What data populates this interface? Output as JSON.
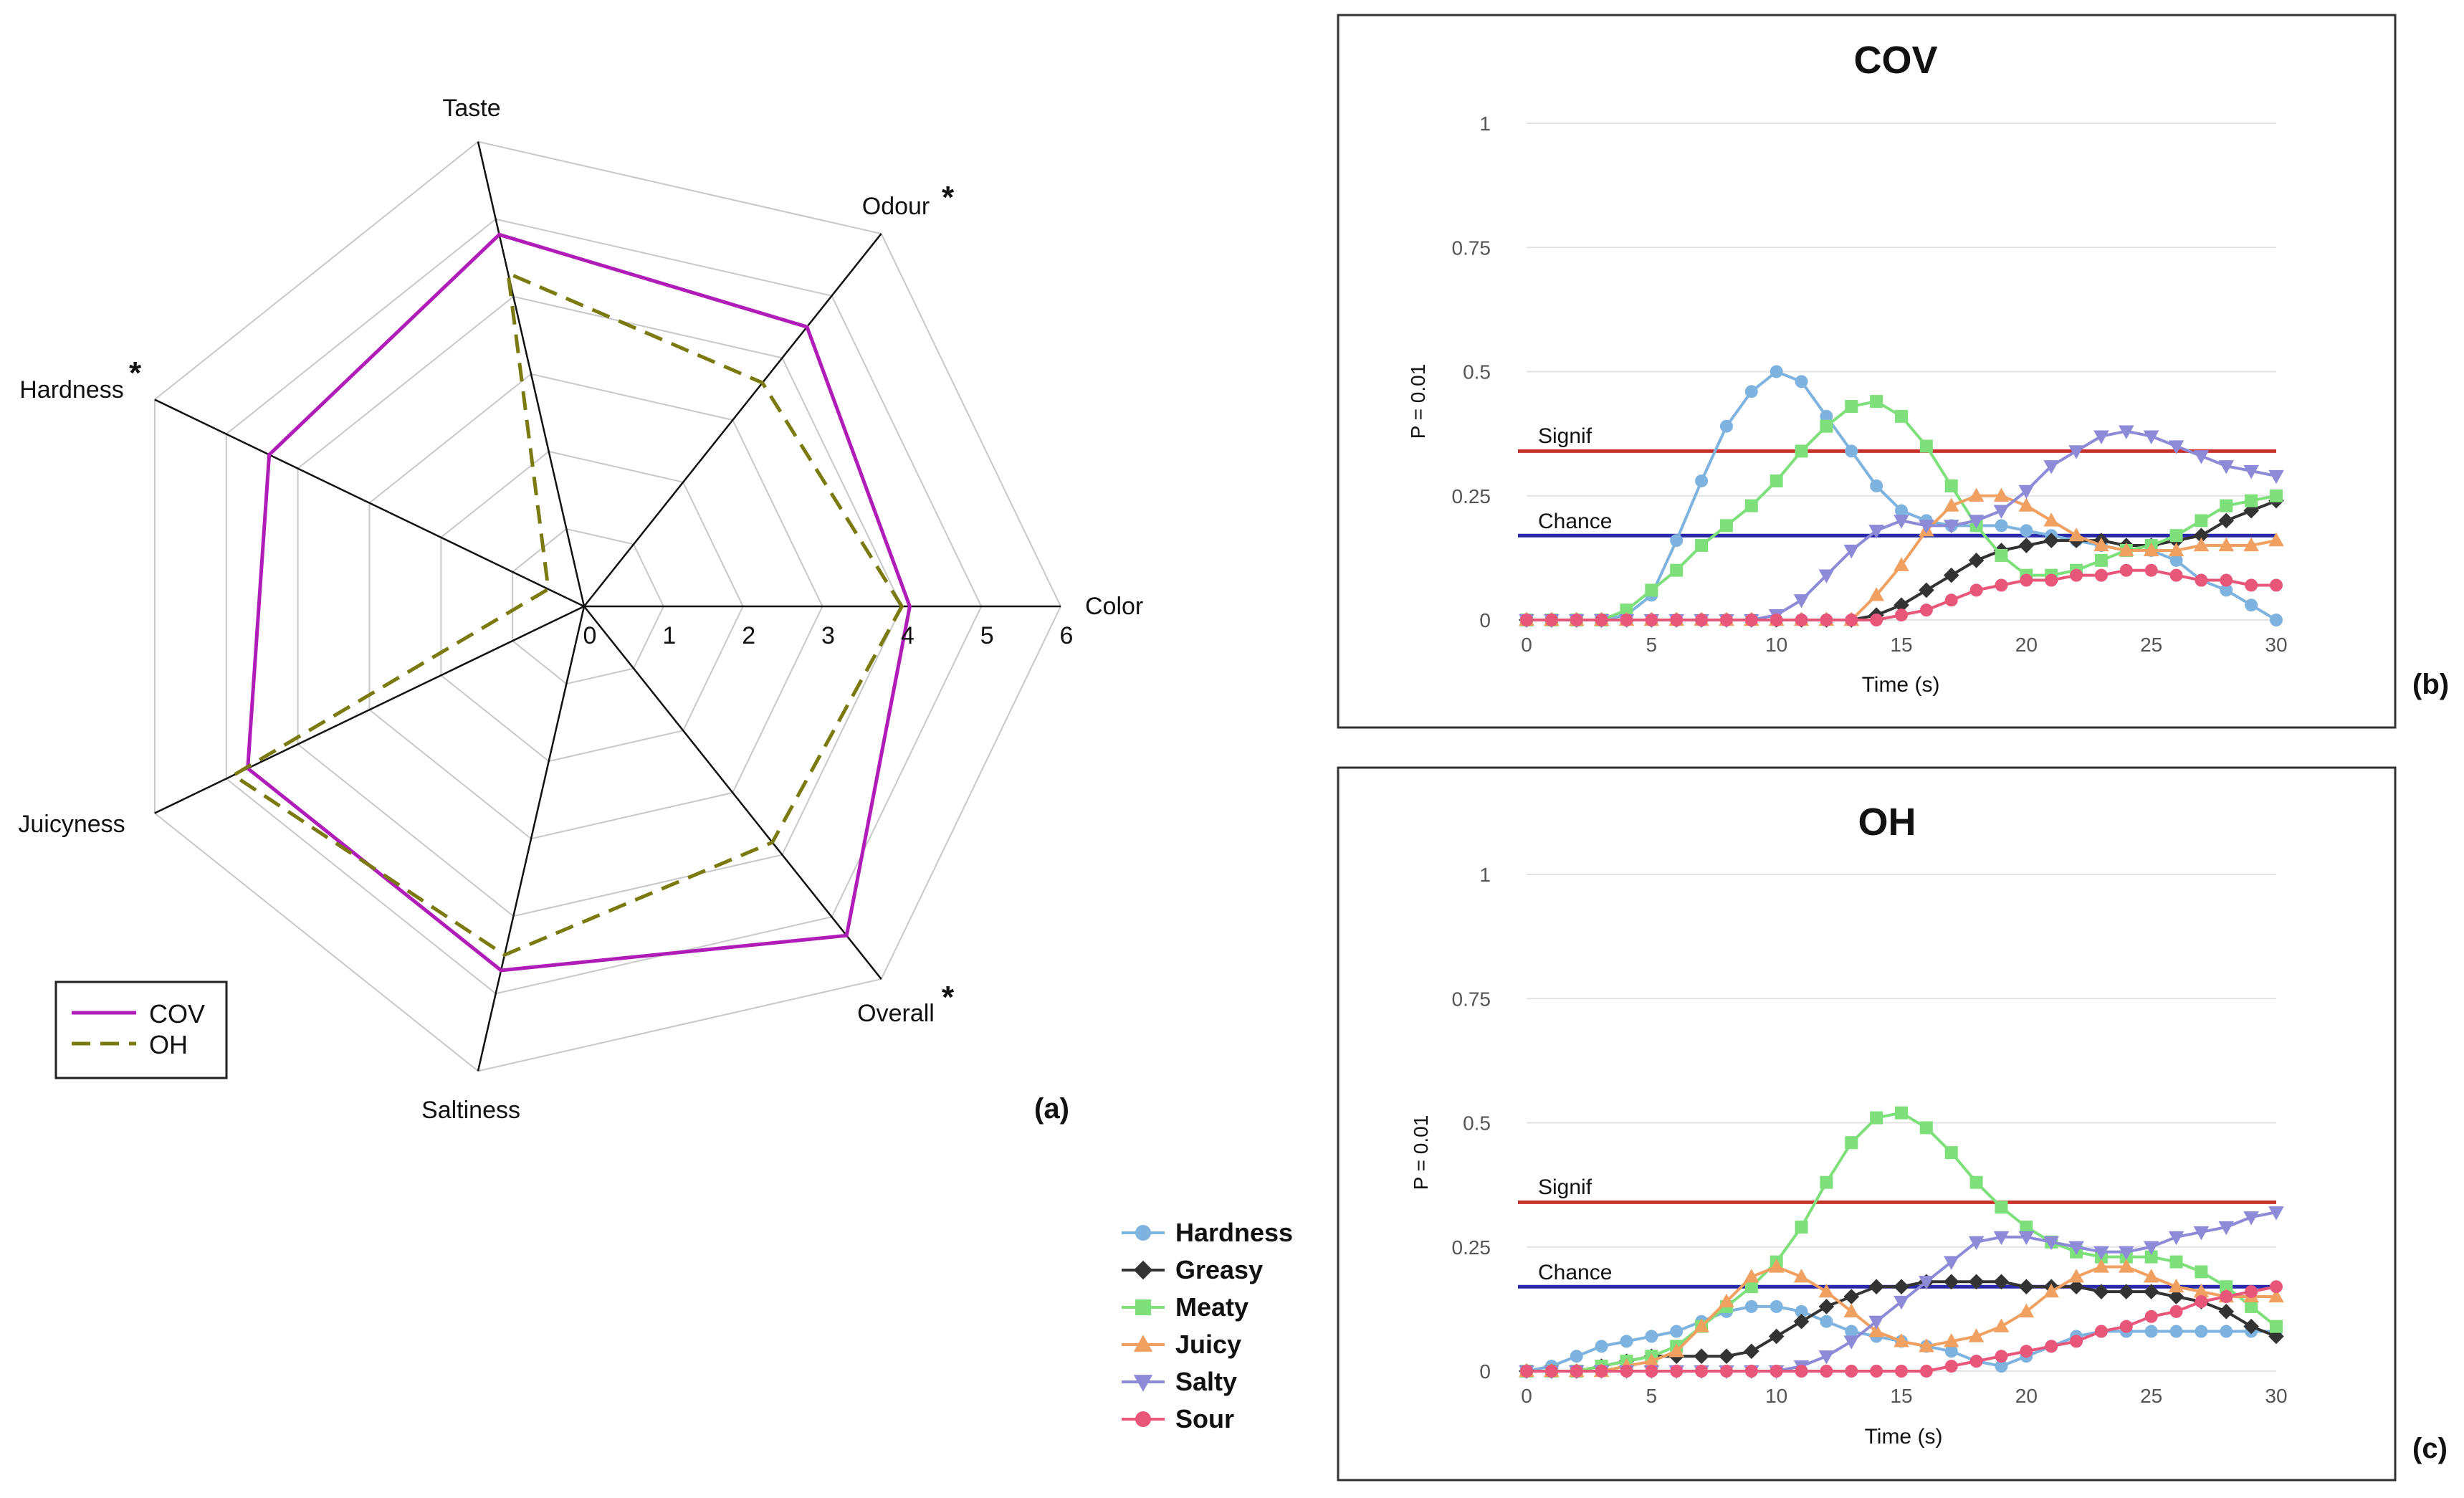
{
  "chart_data": [
    {
      "type": "radar",
      "panel_label": "(a)",
      "axes": [
        "Color",
        "Odour",
        "Taste",
        "Hardness",
        "Juicyness",
        "Saltiness",
        "Overall"
      ],
      "significant_axes": [
        "Odour",
        "Hardness",
        "Overall"
      ],
      "significance_mark": "*",
      "radial_ticks": [
        "0",
        "1",
        "2",
        "3",
        "4",
        "5",
        "6"
      ],
      "rmax": 6,
      "grid": true,
      "legend_position": "bottom-left",
      "series": [
        {
          "name": "COV",
          "color": "#b01cb8",
          "dash": "solid",
          "values": [
            4.1,
            4.5,
            4.8,
            4.4,
            4.7,
            4.7,
            5.3
          ]
        },
        {
          "name": "OH",
          "color": "#7a7a10",
          "dash": "dashed",
          "values": [
            4.0,
            3.6,
            4.3,
            0.5,
            4.9,
            4.5,
            3.8
          ]
        }
      ]
    },
    {
      "type": "line",
      "title": "COV",
      "panel_label": "(b)",
      "xlabel": "Time (s)",
      "ylabel": "P = 0.01",
      "xlim": [
        0,
        30
      ],
      "ylim": [
        0,
        1
      ],
      "xticks": [
        "0",
        "5",
        "10",
        "15",
        "20",
        "25",
        "30"
      ],
      "yticks": [
        "0",
        "0.25",
        "0.5",
        "0.75",
        "1"
      ],
      "grid": true,
      "reference_lines": [
        {
          "name": "Signif",
          "y": 0.34,
          "color": "#c8312e"
        },
        {
          "name": "Chance",
          "y": 0.17,
          "color": "#2a2aa8"
        }
      ],
      "x": [
        0,
        1,
        2,
        3,
        4,
        5,
        6,
        7,
        8,
        9,
        10,
        11,
        12,
        13,
        14,
        15,
        16,
        17,
        18,
        19,
        20,
        21,
        22,
        23,
        24,
        25,
        26,
        27,
        28,
        29,
        30
      ],
      "series": [
        {
          "name": "Hardness",
          "color": "#7eb3e0",
          "marker": "circle",
          "values": [
            0,
            0,
            0,
            0,
            0.01,
            0.05,
            0.16,
            0.28,
            0.39,
            0.46,
            0.5,
            0.48,
            0.41,
            0.34,
            0.27,
            0.22,
            0.2,
            0.19,
            0.19,
            0.19,
            0.18,
            0.17,
            0.16,
            0.15,
            0.14,
            0.14,
            0.12,
            0.08,
            0.06,
            0.03,
            0
          ]
        },
        {
          "name": "Greasy",
          "color": "#333333",
          "marker": "diamond",
          "values": [
            0,
            0,
            0,
            0,
            0,
            0,
            0,
            0,
            0,
            0,
            0,
            0,
            0,
            0,
            0.01,
            0.03,
            0.06,
            0.09,
            0.12,
            0.14,
            0.15,
            0.16,
            0.16,
            0.16,
            0.15,
            0.15,
            0.16,
            0.17,
            0.2,
            0.22,
            0.24
          ]
        },
        {
          "name": "Meaty",
          "color": "#7ee07a",
          "marker": "square",
          "values": [
            0,
            0,
            0,
            0,
            0.02,
            0.06,
            0.1,
            0.15,
            0.19,
            0.23,
            0.28,
            0.34,
            0.39,
            0.43,
            0.44,
            0.41,
            0.35,
            0.27,
            0.19,
            0.13,
            0.09,
            0.09,
            0.1,
            0.12,
            0.14,
            0.15,
            0.17,
            0.2,
            0.23,
            0.24,
            0.25
          ]
        },
        {
          "name": "Juicy",
          "color": "#f0a060",
          "marker": "triangle-up",
          "values": [
            0,
            0,
            0,
            0,
            0,
            0,
            0,
            0,
            0,
            0,
            0,
            0,
            0,
            0,
            0.05,
            0.11,
            0.18,
            0.23,
            0.25,
            0.25,
            0.23,
            0.2,
            0.17,
            0.15,
            0.14,
            0.14,
            0.14,
            0.15,
            0.15,
            0.15,
            0.16
          ]
        },
        {
          "name": "Salty",
          "color": "#8d8ad8",
          "marker": "triangle-down",
          "values": [
            0,
            0,
            0,
            0,
            0,
            0,
            0,
            0,
            0,
            0,
            0.01,
            0.04,
            0.09,
            0.14,
            0.18,
            0.2,
            0.19,
            0.19,
            0.2,
            0.22,
            0.26,
            0.31,
            0.34,
            0.37,
            0.38,
            0.37,
            0.35,
            0.33,
            0.31,
            0.3,
            0.29
          ]
        },
        {
          "name": "Sour",
          "color": "#e8567a",
          "marker": "circle",
          "values": [
            0,
            0,
            0,
            0,
            0,
            0,
            0,
            0,
            0,
            0,
            0,
            0,
            0,
            0,
            0,
            0.01,
            0.02,
            0.04,
            0.06,
            0.07,
            0.08,
            0.08,
            0.09,
            0.09,
            0.1,
            0.1,
            0.09,
            0.08,
            0.08,
            0.07,
            0.07
          ]
        }
      ]
    },
    {
      "type": "line",
      "title": "OH",
      "panel_label": "(c)",
      "xlabel": "Time (s)",
      "ylabel": "P = 0.01",
      "xlim": [
        0,
        30
      ],
      "ylim": [
        0,
        1
      ],
      "xticks": [
        "0",
        "5",
        "10",
        "15",
        "20",
        "25",
        "30"
      ],
      "yticks": [
        "0",
        "0.25",
        "0.5",
        "0.75",
        "1"
      ],
      "grid": true,
      "reference_lines": [
        {
          "name": "Signif",
          "y": 0.34,
          "color": "#c8312e"
        },
        {
          "name": "Chance",
          "y": 0.17,
          "color": "#2a2aa8"
        }
      ],
      "x": [
        0,
        1,
        2,
        3,
        4,
        5,
        6,
        7,
        8,
        9,
        10,
        11,
        12,
        13,
        14,
        15,
        16,
        17,
        18,
        19,
        20,
        21,
        22,
        23,
        24,
        25,
        26,
        27,
        28,
        29,
        30
      ],
      "series": [
        {
          "name": "Hardness",
          "color": "#7eb3e0",
          "marker": "circle",
          "values": [
            0,
            0.01,
            0.03,
            0.05,
            0.06,
            0.07,
            0.08,
            0.1,
            0.12,
            0.13,
            0.13,
            0.12,
            0.1,
            0.08,
            0.07,
            0.06,
            0.05,
            0.04,
            0.02,
            0.01,
            0.03,
            0.05,
            0.07,
            0.08,
            0.08,
            0.08,
            0.08,
            0.08,
            0.08,
            0.08,
            0.08
          ]
        },
        {
          "name": "Greasy",
          "color": "#333333",
          "marker": "diamond",
          "values": [
            0,
            0,
            0,
            0.01,
            0.02,
            0.03,
            0.03,
            0.03,
            0.03,
            0.04,
            0.07,
            0.1,
            0.13,
            0.15,
            0.17,
            0.17,
            0.18,
            0.18,
            0.18,
            0.18,
            0.17,
            0.17,
            0.17,
            0.16,
            0.16,
            0.16,
            0.15,
            0.14,
            0.12,
            0.09,
            0.07
          ]
        },
        {
          "name": "Meaty",
          "color": "#7ee07a",
          "marker": "square",
          "values": [
            0,
            0,
            0,
            0.01,
            0.02,
            0.03,
            0.05,
            0.09,
            0.13,
            0.17,
            0.22,
            0.29,
            0.38,
            0.46,
            0.51,
            0.52,
            0.49,
            0.44,
            0.38,
            0.33,
            0.29,
            0.26,
            0.24,
            0.23,
            0.23,
            0.23,
            0.22,
            0.2,
            0.17,
            0.13,
            0.09
          ]
        },
        {
          "name": "Juicy",
          "color": "#f0a060",
          "marker": "triangle-up",
          "values": [
            0,
            0,
            0,
            0,
            0.01,
            0.02,
            0.04,
            0.09,
            0.14,
            0.19,
            0.21,
            0.19,
            0.16,
            0.12,
            0.08,
            0.06,
            0.05,
            0.06,
            0.07,
            0.09,
            0.12,
            0.16,
            0.19,
            0.21,
            0.21,
            0.19,
            0.17,
            0.16,
            0.15,
            0.15,
            0.15
          ]
        },
        {
          "name": "Salty",
          "color": "#8d8ad8",
          "marker": "triangle-down",
          "values": [
            0,
            0,
            0,
            0,
            0,
            0,
            0,
            0,
            0,
            0,
            0,
            0.01,
            0.03,
            0.06,
            0.1,
            0.14,
            0.18,
            0.22,
            0.26,
            0.27,
            0.27,
            0.26,
            0.25,
            0.24,
            0.24,
            0.25,
            0.27,
            0.28,
            0.29,
            0.31,
            0.32
          ]
        },
        {
          "name": "Sour",
          "color": "#e8567a",
          "marker": "circle",
          "values": [
            0,
            0,
            0,
            0,
            0,
            0,
            0,
            0,
            0,
            0,
            0,
            0,
            0,
            0,
            0,
            0,
            0,
            0.01,
            0.02,
            0.03,
            0.04,
            0.05,
            0.06,
            0.08,
            0.09,
            0.11,
            0.12,
            0.14,
            0.15,
            0.16,
            0.17
          ]
        }
      ]
    }
  ],
  "legend": {
    "items": [
      {
        "name": "Hardness",
        "color": "#7eb3e0",
        "marker": "circle"
      },
      {
        "name": "Greasy",
        "color": "#333333",
        "marker": "diamond"
      },
      {
        "name": "Meaty",
        "color": "#7ee07a",
        "marker": "square"
      },
      {
        "name": "Juicy",
        "color": "#f0a060",
        "marker": "triangle-up"
      },
      {
        "name": "Salty",
        "color": "#8d8ad8",
        "marker": "triangle-down"
      },
      {
        "name": "Sour",
        "color": "#e8567a",
        "marker": "circle"
      }
    ]
  }
}
